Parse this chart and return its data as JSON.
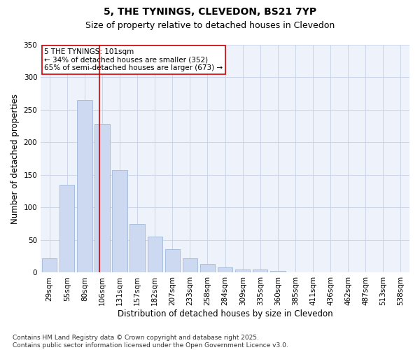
{
  "title1": "5, THE TYNINGS, CLEVEDON, BS21 7YP",
  "title2": "Size of property relative to detached houses in Clevedon",
  "xlabel": "Distribution of detached houses by size in Clevedon",
  "ylabel": "Number of detached properties",
  "categories": [
    "29sqm",
    "55sqm",
    "80sqm",
    "106sqm",
    "131sqm",
    "157sqm",
    "182sqm",
    "207sqm",
    "233sqm",
    "258sqm",
    "284sqm",
    "309sqm",
    "335sqm",
    "360sqm",
    "385sqm",
    "411sqm",
    "436sqm",
    "462sqm",
    "487sqm",
    "513sqm",
    "538sqm"
  ],
  "values": [
    22,
    135,
    265,
    228,
    157,
    75,
    55,
    36,
    22,
    13,
    8,
    5,
    5,
    3,
    1,
    1,
    0,
    0,
    1,
    0,
    1
  ],
  "bar_color": "#ccd9f0",
  "bar_edge_color": "#a8bedd",
  "property_line_color": "#cc0000",
  "annotation_text": "5 THE TYNINGS: 101sqm\n← 34% of detached houses are smaller (352)\n65% of semi-detached houses are larger (673) →",
  "annotation_box_color": "#cc0000",
  "ylim": [
    0,
    350
  ],
  "yticks": [
    0,
    50,
    100,
    150,
    200,
    250,
    300,
    350
  ],
  "grid_color": "#ccd5e8",
  "background_color": "#eef2fa",
  "footer": "Contains HM Land Registry data © Crown copyright and database right 2025.\nContains public sector information licensed under the Open Government Licence v3.0.",
  "title1_fontsize": 10,
  "title2_fontsize": 9,
  "xlabel_fontsize": 8.5,
  "ylabel_fontsize": 8.5,
  "tick_fontsize": 7.5,
  "footer_fontsize": 6.5,
  "annotation_fontsize": 7.5
}
